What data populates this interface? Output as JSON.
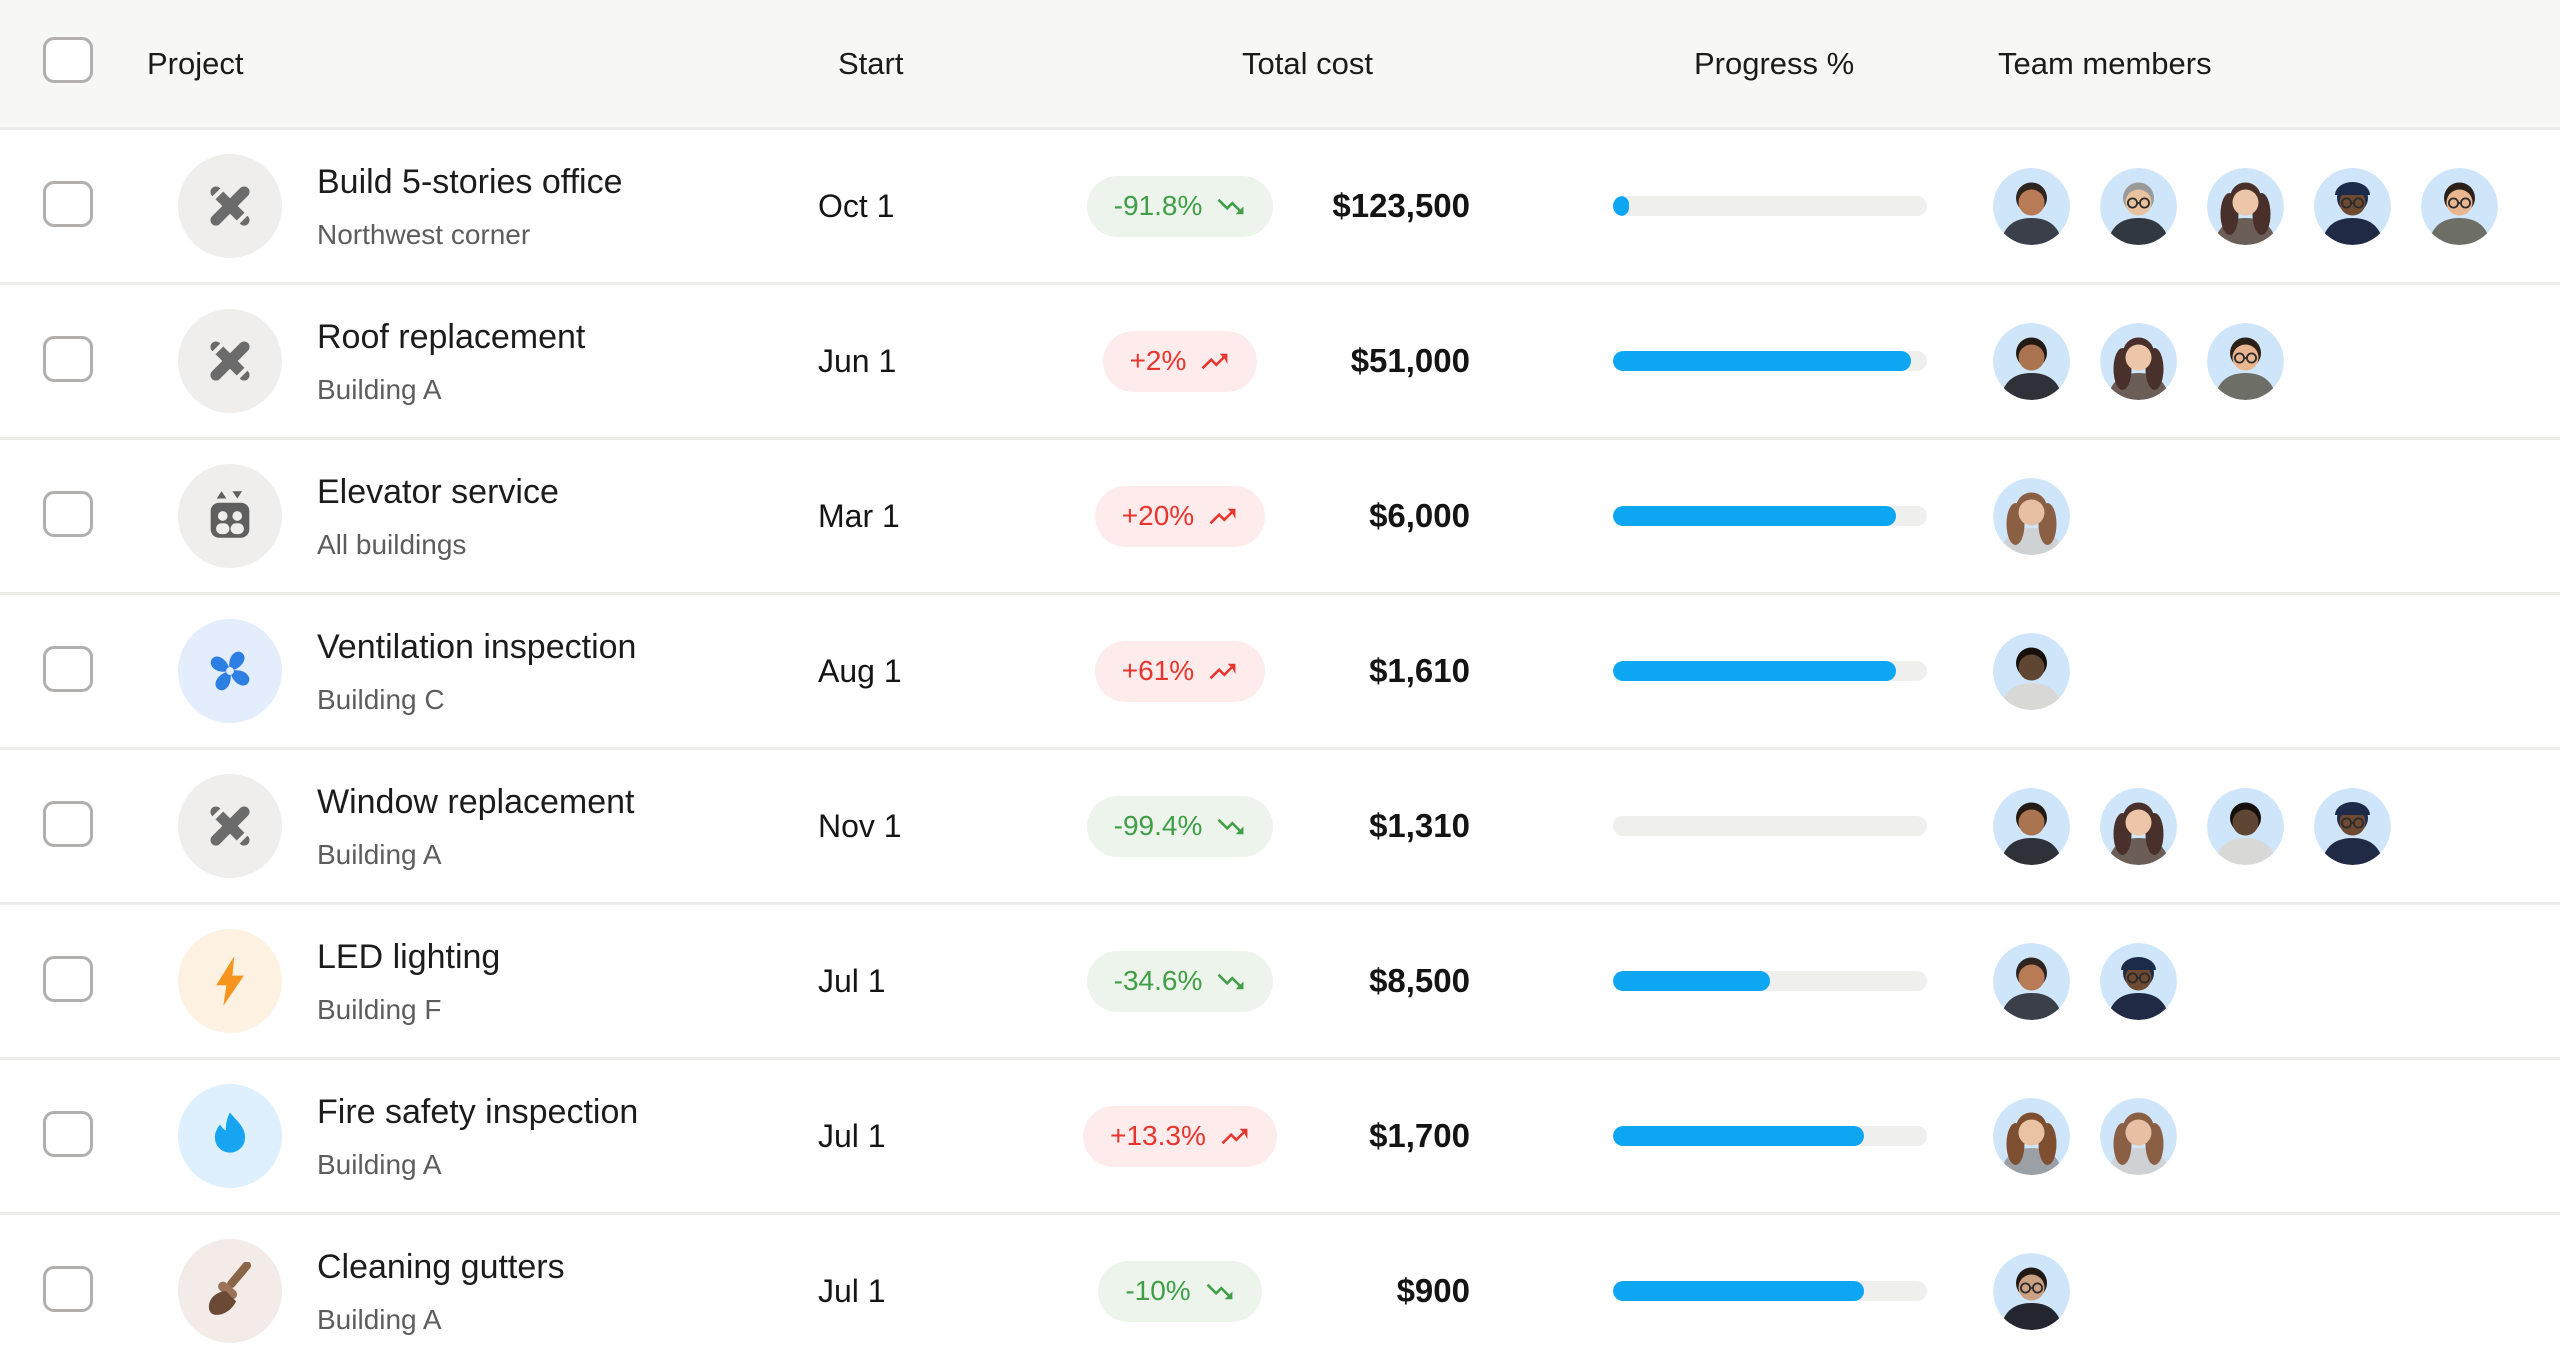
{
  "table": {
    "columns": {
      "project": "Project",
      "start": "Start",
      "total_cost": "Total cost",
      "progress": "Progress %",
      "team": "Team members"
    }
  },
  "colors": {
    "progress_fill": "#0ca6f2",
    "progress_track": "#efefee",
    "badge_green_text": "#3f9e46",
    "badge_green_bg": "#edf4ec",
    "badge_red_text": "#e7362e",
    "badge_red_bg": "#fdeceb",
    "avatar_bg": "#cfe5fa",
    "header_bg": "#f7f7f5",
    "divider": "#ececea"
  },
  "icon_styles": {
    "tools": {
      "name": "crossed-tools-icon",
      "bg": "#efeeec",
      "fg": "#6b6b6b"
    },
    "elevator": {
      "name": "elevator-icon",
      "bg": "#efeeec",
      "fg": "#5f5f5f"
    },
    "fan": {
      "name": "fan-icon",
      "bg": "#e4edfb",
      "fg": "#2e7fe3"
    },
    "bolt": {
      "name": "lightning-icon",
      "bg": "#fdf1e2",
      "fg": "#f7941d"
    },
    "flame": {
      "name": "flame-icon",
      "bg": "#def0fd",
      "fg": "#17a5f1"
    },
    "broom": {
      "name": "broom-icon",
      "bg": "#f2ebe7",
      "fg": "#6a4a35"
    }
  },
  "people": {
    "p1": {
      "skin": "#b97a56",
      "hair": "#2f2520",
      "shirt": "#3a3f4a",
      "style": "short",
      "glasses": false
    },
    "p2": {
      "skin": "#e8c19e",
      "hair": "#9a9a98",
      "shirt": "#32383f",
      "style": "short",
      "glasses": true
    },
    "p3": {
      "skin": "#edc5a8",
      "hair": "#4a302a",
      "shirt": "#6b5e57",
      "style": "long",
      "glasses": false
    },
    "p4": {
      "skin": "#6e4a33",
      "hair": "#1d2a4a",
      "shirt": "#202a44",
      "style": "beret",
      "glasses": true,
      "hat": "#1d2a4a"
    },
    "p5": {
      "skin": "#e9b68f",
      "hair": "#2b2118",
      "shirt": "#6d6f66",
      "style": "short",
      "glasses": true
    },
    "p6": {
      "skin": "#a9744f",
      "hair": "#231a14",
      "shirt": "#2e3138",
      "style": "short",
      "glasses": false
    },
    "p7": {
      "skin": "#e6bfa4",
      "hair": "#8a5f44",
      "shirt": "#cfd2d4",
      "style": "long",
      "glasses": false
    },
    "p8": {
      "skin": "#5f4632",
      "hair": "#15100c",
      "shirt": "#d8d8d6",
      "style": "short",
      "glasses": false
    },
    "p9": {
      "skin": "#eac3a4",
      "hair": "#7d4e30",
      "shirt": "#9aa0a6",
      "style": "long",
      "glasses": false
    },
    "p10": {
      "skin": "#caa183",
      "hair": "#221a12",
      "shirt": "#23262e",
      "style": "short",
      "glasses": true
    }
  },
  "rows": [
    {
      "icon": "tools",
      "title": "Build 5-stories office",
      "subtitle": "Northwest corner",
      "start": "Oct 1",
      "change": {
        "label": "-91.8%",
        "trend": "down",
        "tone": "green"
      },
      "cost": "$123,500",
      "progress": 5,
      "team": [
        "p1",
        "p2",
        "p3",
        "p4",
        "p5"
      ]
    },
    {
      "icon": "tools",
      "title": "Roof replacement",
      "subtitle": "Building A",
      "start": "Jun 1",
      "change": {
        "label": "+2%",
        "trend": "up",
        "tone": "red"
      },
      "cost": "$51,000",
      "progress": 95,
      "team": [
        "p6",
        "p3",
        "p5"
      ]
    },
    {
      "icon": "elevator",
      "title": "Elevator service",
      "subtitle": "All buildings",
      "start": "Mar 1",
      "change": {
        "label": "+20%",
        "trend": "up",
        "tone": "red"
      },
      "cost": "$6,000",
      "progress": 90,
      "team": [
        "p7"
      ]
    },
    {
      "icon": "fan",
      "title": "Ventilation inspection",
      "subtitle": "Building C",
      "start": "Aug 1",
      "change": {
        "label": "+61%",
        "trend": "up",
        "tone": "red"
      },
      "cost": "$1,610",
      "progress": 90,
      "team": [
        "p8"
      ]
    },
    {
      "icon": "tools",
      "title": "Window replacement",
      "subtitle": "Building A",
      "start": "Nov 1",
      "change": {
        "label": "-99.4%",
        "trend": "down",
        "tone": "green"
      },
      "cost": "$1,310",
      "progress": 0,
      "team": [
        "p6",
        "p3",
        "p8",
        "p4"
      ]
    },
    {
      "icon": "bolt",
      "title": "LED lighting",
      "subtitle": "Building F",
      "start": "Jul 1",
      "change": {
        "label": "-34.6%",
        "trend": "down",
        "tone": "green"
      },
      "cost": "$8,500",
      "progress": 50,
      "team": [
        "p1",
        "p4"
      ]
    },
    {
      "icon": "flame",
      "title": "Fire safety inspection",
      "subtitle": "Building A",
      "start": "Jul 1",
      "change": {
        "label": "+13.3%",
        "trend": "up",
        "tone": "red"
      },
      "cost": "$1,700",
      "progress": 80,
      "team": [
        "p9",
        "p7"
      ]
    },
    {
      "icon": "broom",
      "title": "Cleaning gutters",
      "subtitle": "Building A",
      "start": "Jul 1",
      "change": {
        "label": "-10%",
        "trend": "down",
        "tone": "green"
      },
      "cost": "$900",
      "progress": 80,
      "team": [
        "p10"
      ]
    }
  ]
}
